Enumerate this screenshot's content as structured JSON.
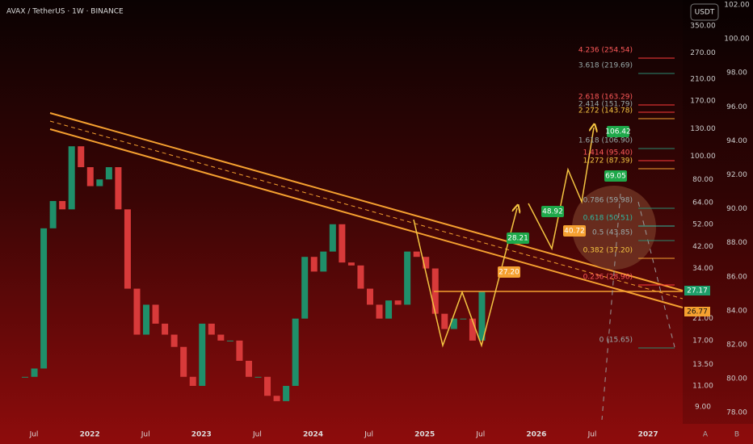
{
  "header": {
    "symbol": "AVAX / TetherUS · 1W · BINANCE",
    "currency": "USDT"
  },
  "price_axis": {
    "labels": [
      "350.00",
      "270.00",
      "210.00",
      "170.00",
      "130.00",
      "100.00",
      "80.00",
      "64.00",
      "52.00",
      "42.00",
      "34.00",
      "21.00",
      "17.00",
      "13.50",
      "11.00",
      "9.00"
    ]
  },
  "percent_axis": {
    "labels": [
      "102.00",
      "100.00",
      "98.00",
      "96.00",
      "94.00",
      "92.00",
      "90.00",
      "88.00",
      "86.00",
      "84.00",
      "82.00",
      "80.00",
      "78.00"
    ]
  },
  "time_axis": {
    "labels": [
      "Jul",
      "2022",
      "Jul",
      "2023",
      "Jul",
      "2024",
      "Jul",
      "2025",
      "Jul",
      "2026",
      "Jul",
      "2027"
    ]
  },
  "fib_levels": [
    "4.236 (254.54)",
    "3.618 (219.69)",
    "2.618 (163.29)",
    "2.414 (151.79)",
    "2.272 (143.78)",
    "1.618 (106.90)",
    "1.414 (95.40)",
    "1.272 (87.39)",
    "0.786 (59.98)",
    "0.618 (50.51)",
    "0.5 (43.85)",
    "0.382 (37.20)",
    "0.236 (28.96)",
    "0 (15.65)"
  ],
  "targets": [
    "27.20",
    "28.21",
    "40.72",
    "48.92",
    "69.05",
    "106.42"
  ],
  "last_price": "27.17",
  "alert_price": "26.77",
  "scale_buttons": [
    "A",
    "B"
  ],
  "candles": {
    "closes": [
      12,
      13,
      50,
      65,
      60,
      110,
      90,
      75,
      80,
      90,
      60,
      28,
      18,
      24,
      20,
      18,
      16,
      12,
      11,
      20,
      18,
      17,
      17,
      14,
      12,
      12,
      10,
      9.5,
      11,
      21,
      38,
      33,
      40,
      52,
      36,
      35,
      28,
      24,
      21,
      25,
      24,
      40,
      38,
      34,
      22,
      19,
      21,
      21,
      17,
      27.17
    ]
  }
}
